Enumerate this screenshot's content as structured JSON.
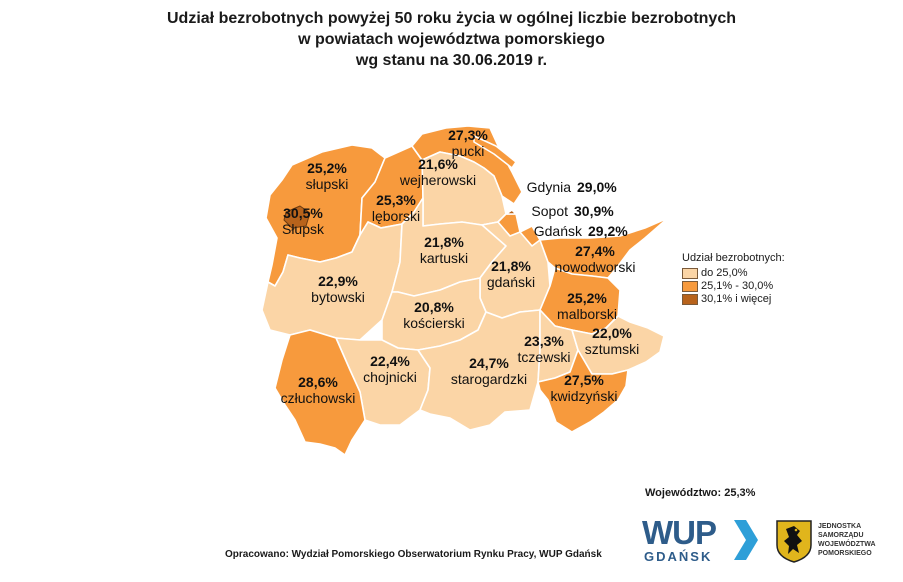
{
  "title": {
    "line1": "Udział bezrobotnych powyżej 50 roku życia w ogólnej liczbie bezrobotnych",
    "line2": "w powiatach województwa pomorskiego",
    "line3": "wg stanu na 30.06.2019 r."
  },
  "colors": {
    "low": "#fbd5a6",
    "mid": "#f79a3d",
    "high": "#b8631b",
    "border": "#ffffff"
  },
  "legend": {
    "title": "Udział bezrobotnych:",
    "items": [
      {
        "label": "do 25,0%",
        "color": "#fbd5a6"
      },
      {
        "label": "25,1% - 30,0%",
        "color": "#f79a3d"
      },
      {
        "label": "30,1% i więcej",
        "color": "#b8631b"
      }
    ]
  },
  "districts": [
    {
      "id": "pucki",
      "name": "pucki",
      "value": "27,3%",
      "class": "mid"
    },
    {
      "id": "slupski",
      "name": "słupski",
      "value": "25,2%",
      "class": "mid"
    },
    {
      "id": "wejherowski",
      "name": "wejherowski",
      "value": "21,6%",
      "class": "low"
    },
    {
      "id": "slupsk",
      "name": "Słupsk",
      "value": "30,5%",
      "class": "high"
    },
    {
      "id": "leborski",
      "name": "lęborski",
      "value": "25,3%",
      "class": "mid"
    },
    {
      "id": "kartuski",
      "name": "kartuski",
      "value": "21,8%",
      "class": "low"
    },
    {
      "id": "gdanski",
      "name": "gdański",
      "value": "21,8%",
      "class": "low"
    },
    {
      "id": "nowodworski",
      "name": "nowodworski",
      "value": "27,4%",
      "class": "mid"
    },
    {
      "id": "bytowski",
      "name": "bytowski",
      "value": "22,9%",
      "class": "low"
    },
    {
      "id": "koscierski",
      "name": "kościerski",
      "value": "20,8%",
      "class": "low"
    },
    {
      "id": "malborski",
      "name": "malborski",
      "value": "25,2%",
      "class": "mid"
    },
    {
      "id": "sztumski",
      "name": "sztumski",
      "value": "22,0%",
      "class": "low"
    },
    {
      "id": "tczewski",
      "name": "tczewski",
      "value": "23,3%",
      "class": "low"
    },
    {
      "id": "chojnicki",
      "name": "chojnicki",
      "value": "22,4%",
      "class": "low"
    },
    {
      "id": "starogardzki",
      "name": "starogardzki",
      "value": "24,7%",
      "class": "low"
    },
    {
      "id": "czluchowski",
      "name": "człuchowski",
      "value": "28,6%",
      "class": "mid"
    },
    {
      "id": "kwidzynski",
      "name": "kwidzyński",
      "value": "27,5%",
      "class": "mid"
    }
  ],
  "cities": [
    {
      "id": "gdynia",
      "name": "Gdynia",
      "value": "29,0%"
    },
    {
      "id": "sopot",
      "name": "Sopot",
      "value": "30,9%"
    },
    {
      "id": "gdansk",
      "name": "Gdańsk",
      "value": "29,2%"
    }
  ],
  "voivodeship": "Województwo: 25,3%",
  "source": "Opracowano: Wydział Pomorskiego Obserwatorium Rynku Pracy, WUP Gdańsk",
  "logo_wup": {
    "main": "WUP",
    "sub": "GDAŃSK"
  },
  "logo_crest": {
    "lines": [
      "JEDNOSTKA",
      "SAMORZĄDU",
      "WOJEWÓDZTWA",
      "POMORSKIEGO"
    ]
  }
}
